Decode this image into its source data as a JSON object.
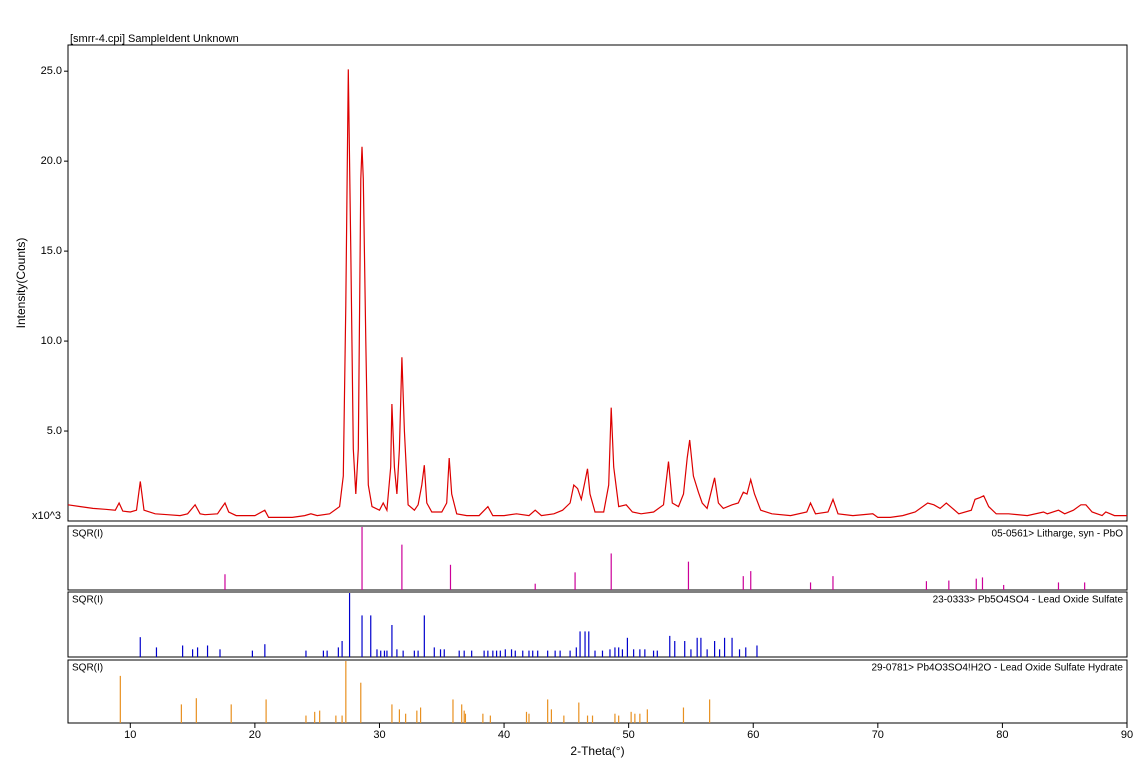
{
  "chart_data": [
    {
      "type": "line",
      "title": "[smrr-4.cpi] SampleIdent Unknown",
      "ylabel": "Intensity(Counts)",
      "yunit": "x10^3",
      "color": "#dd0000",
      "xlim": [
        5,
        90
      ],
      "ylim": [
        0,
        26.4
      ],
      "yticks": [
        {
          "value": 5,
          "label": "5.0"
        },
        {
          "value": 10,
          "label": "10.0"
        },
        {
          "value": 15,
          "label": "15.0"
        },
        {
          "value": 20,
          "label": "20.0"
        },
        {
          "value": 25,
          "label": "25.0"
        }
      ],
      "x": [
        5,
        6,
        7,
        8,
        8.8,
        9.1,
        9.4,
        10,
        10.5,
        10.8,
        11.1,
        12,
        13,
        14,
        14.6,
        15.2,
        15.6,
        16,
        17,
        17.3,
        17.6,
        17.9,
        18.5,
        20,
        20.8,
        21.1,
        22,
        23,
        24,
        24.5,
        25,
        26,
        26.8,
        27.1,
        27.3,
        27.5,
        27.7,
        27.9,
        28.1,
        28.3,
        28.5,
        28.6,
        28.7,
        28.9,
        29.1,
        29.4,
        30,
        30.3,
        30.6,
        30.9,
        31,
        31.2,
        31.4,
        31.6,
        31.8,
        32,
        32.3,
        32.8,
        33.1,
        33.4,
        33.6,
        33.8,
        34.2,
        35,
        35.4,
        35.6,
        35.8,
        36.2,
        37,
        38,
        38.7,
        39.1,
        40,
        41,
        42,
        42.5,
        43,
        44,
        44.7,
        45.3,
        45.6,
        45.9,
        46.2,
        46.5,
        46.7,
        46.9,
        47.3,
        48,
        48.4,
        48.6,
        48.8,
        49.2,
        49.8,
        50.3,
        51,
        52,
        52.8,
        53.2,
        53.5,
        54,
        54.4,
        54.7,
        54.9,
        55.2,
        55.6,
        55.9,
        56.3,
        56.9,
        57.2,
        57.6,
        58.3,
        58.8,
        59.2,
        59.5,
        59.8,
        60.1,
        60.6,
        61.5,
        63,
        64.3,
        64.6,
        65,
        66,
        66.4,
        66.8,
        68,
        69.6,
        70,
        71,
        72,
        73,
        74,
        74.5,
        75,
        75.5,
        76,
        76.5,
        77.5,
        77.8,
        78.2,
        78.5,
        78.9,
        79.5,
        80.5,
        82,
        83.3,
        83.6,
        84.5,
        85,
        85.7,
        86.3,
        86.7,
        87.2,
        88,
        88.3,
        89,
        90
      ],
      "values": [
        0.9,
        0.8,
        0.7,
        0.65,
        0.6,
        1.0,
        0.55,
        0.5,
        0.6,
        2.2,
        0.6,
        0.4,
        0.35,
        0.3,
        0.4,
        0.9,
        0.4,
        0.35,
        0.4,
        0.7,
        1.0,
        0.5,
        0.3,
        0.3,
        0.6,
        0.2,
        0.2,
        0.2,
        0.3,
        0.4,
        0.3,
        0.4,
        0.8,
        2.5,
        12,
        25.1,
        15,
        4,
        1.5,
        4,
        19,
        20.8,
        19,
        10,
        2,
        0.8,
        0.6,
        1.0,
        0.6,
        3,
        6.5,
        3,
        1.5,
        4,
        9.1,
        5,
        0.9,
        0.6,
        0.9,
        2,
        3.1,
        1,
        0.5,
        0.5,
        1.0,
        3.5,
        1.5,
        0.4,
        0.3,
        0.3,
        0.8,
        0.3,
        0.3,
        0.4,
        0.3,
        0.6,
        0.3,
        0.4,
        0.6,
        1.0,
        2,
        1.8,
        1.2,
        2.2,
        2.9,
        1.5,
        0.5,
        0.5,
        2,
        6.3,
        3,
        0.8,
        0.9,
        0.5,
        0.4,
        0.5,
        0.9,
        3.3,
        1,
        0.8,
        1.5,
        3.5,
        4.5,
        2.5,
        1.6,
        1.0,
        0.7,
        2.4,
        1,
        0.7,
        0.9,
        1.0,
        1.6,
        1.5,
        2.3,
        1.5,
        0.6,
        0.4,
        0.3,
        0.5,
        1.0,
        0.4,
        0.5,
        1.2,
        0.4,
        0.3,
        0.4,
        0.2,
        0.2,
        0.3,
        0.5,
        1.0,
        0.9,
        0.7,
        1.0,
        0.7,
        0.4,
        0.6,
        1.2,
        1.3,
        1.4,
        0.8,
        0.4,
        0.4,
        0.3,
        0.5,
        0.4,
        0.6,
        0.4,
        0.6,
        0.9,
        0.9,
        0.5,
        0.3,
        0.5,
        0.3,
        0.3
      ]
    },
    {
      "type": "stick",
      "scale_label": "SQR(I)",
      "name": "05-0561> Litharge, syn - PbO",
      "color": "#cc0099",
      "xlim": [
        5,
        90
      ],
      "ylim": [
        0,
        100
      ],
      "x": [
        17.6,
        28.6,
        31.8,
        35.7,
        42.5,
        45.7,
        48.6,
        54.8,
        59.2,
        59.8,
        64.6,
        66.4,
        73.9,
        75.7,
        77.9,
        78.4,
        80.1,
        84.5,
        86.6
      ],
      "values": [
        25,
        100,
        72,
        40,
        10,
        28,
        58,
        45,
        22,
        30,
        12,
        22,
        14,
        15,
        18,
        20,
        8,
        12,
        12
      ]
    },
    {
      "type": "stick",
      "scale_label": "SQR(I)",
      "name": "23-0333> Pb5O4SO4 - Lead Oxide Sulfate",
      "color": "#0000cc",
      "xlim": [
        5,
        90
      ],
      "ylim": [
        0,
        100
      ],
      "x": [
        10.8,
        12.1,
        14.2,
        15.0,
        15.4,
        16.2,
        17.2,
        19.8,
        20.8,
        24.1,
        25.5,
        25.8,
        26.7,
        27.0,
        27.6,
        28.6,
        29.3,
        29.8,
        30.1,
        30.4,
        30.6,
        31.0,
        31.4,
        31.9,
        32.8,
        33.1,
        33.6,
        34.4,
        34.9,
        35.2,
        36.4,
        36.8,
        37.4,
        38.4,
        38.7,
        39.1,
        39.4,
        39.7,
        40.1,
        40.6,
        40.9,
        41.5,
        42.0,
        42.3,
        42.7,
        43.5,
        44.1,
        44.5,
        45.3,
        45.8,
        46.1,
        46.5,
        46.8,
        47.3,
        47.9,
        48.5,
        48.9,
        49.2,
        49.5,
        49.9,
        50.4,
        50.9,
        51.3,
        52.0,
        52.3,
        53.3,
        53.7,
        54.5,
        55.0,
        55.5,
        55.8,
        56.3,
        56.9,
        57.3,
        57.7,
        58.3,
        58.9,
        59.4,
        60.3
      ],
      "values": [
        31,
        15,
        18,
        12,
        15,
        18,
        12,
        10,
        20,
        10,
        10,
        10,
        15,
        25,
        100,
        65,
        65,
        12,
        10,
        10,
        10,
        50,
        12,
        10,
        10,
        10,
        65,
        15,
        12,
        12,
        10,
        10,
        10,
        10,
        10,
        10,
        10,
        10,
        12,
        12,
        10,
        10,
        10,
        10,
        10,
        10,
        10,
        10,
        10,
        15,
        40,
        40,
        40,
        10,
        10,
        12,
        15,
        15,
        12,
        30,
        12,
        12,
        12,
        10,
        10,
        33,
        25,
        25,
        12,
        30,
        30,
        12,
        25,
        12,
        30,
        30,
        12,
        15,
        18
      ]
    },
    {
      "type": "stick",
      "scale_label": "SQR(I)",
      "name": "29-0781> Pb4O3SO4!H2O - Lead Oxide Sulfate Hydrate",
      "color": "#e89020",
      "xlim": [
        5,
        90
      ],
      "ylim": [
        0,
        100
      ],
      "xlabel": "2-Theta(°)",
      "xticks": [
        10,
        20,
        30,
        40,
        50,
        60,
        70,
        80,
        90
      ],
      "x": [
        9.2,
        14.1,
        15.3,
        18.1,
        20.9,
        24.1,
        24.8,
        25.2,
        26.5,
        27.0,
        27.3,
        28.5,
        31.0,
        31.6,
        32.1,
        33.0,
        33.3,
        35.9,
        36.6,
        36.8,
        36.9,
        38.3,
        38.9,
        41.8,
        42.0,
        43.5,
        43.8,
        44.8,
        46.0,
        46.7,
        47.1,
        48.9,
        49.2,
        50.2,
        50.5,
        50.9,
        51.5,
        54.4,
        56.5
      ],
      "values": [
        76,
        30,
        40,
        30,
        38,
        12,
        18,
        20,
        12,
        12,
        100,
        65,
        30,
        22,
        15,
        20,
        25,
        38,
        30,
        20,
        15,
        15,
        12,
        18,
        15,
        38,
        22,
        12,
        33,
        12,
        12,
        15,
        12,
        18,
        15,
        15,
        22,
        25,
        38
      ]
    }
  ]
}
